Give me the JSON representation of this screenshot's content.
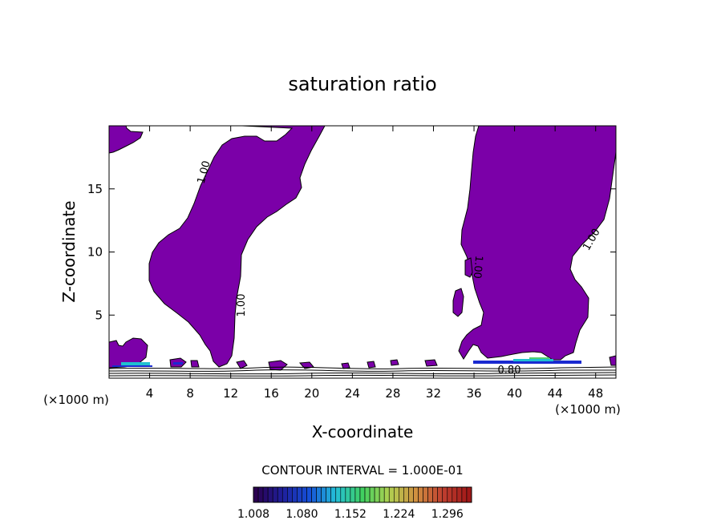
{
  "chart_data": {
    "type": "contour",
    "title": "saturation ratio",
    "xlabel": "X-coordinate",
    "ylabel": "Z-coordinate",
    "x_units": "(×1000 m)",
    "xlim": [
      0,
      50
    ],
    "ylim": [
      0,
      20
    ],
    "x_ticks": [
      4,
      8,
      12,
      16,
      20,
      24,
      28,
      32,
      36,
      40,
      44,
      48
    ],
    "y_ticks": [
      5,
      10,
      15
    ],
    "contour_labels": [
      "1.00",
      "1.00",
      "1.00",
      "1.00",
      "0.80"
    ],
    "contour_interval_text": "CONTOUR INTERVAL = 1.000E-01",
    "colorbar": {
      "min": 1.008,
      "max": 1.332,
      "tick_labels": [
        "1.008",
        "1.080",
        "1.152",
        "1.224",
        "1.296"
      ],
      "colors": [
        "#2a0050",
        "#1f1f9c",
        "#1550d8",
        "#23c0d8",
        "#40d060",
        "#b0d050",
        "#d09040",
        "#c04030",
        "#a01818"
      ]
    },
    "fill_color": "#7b00a8",
    "grid": false
  }
}
